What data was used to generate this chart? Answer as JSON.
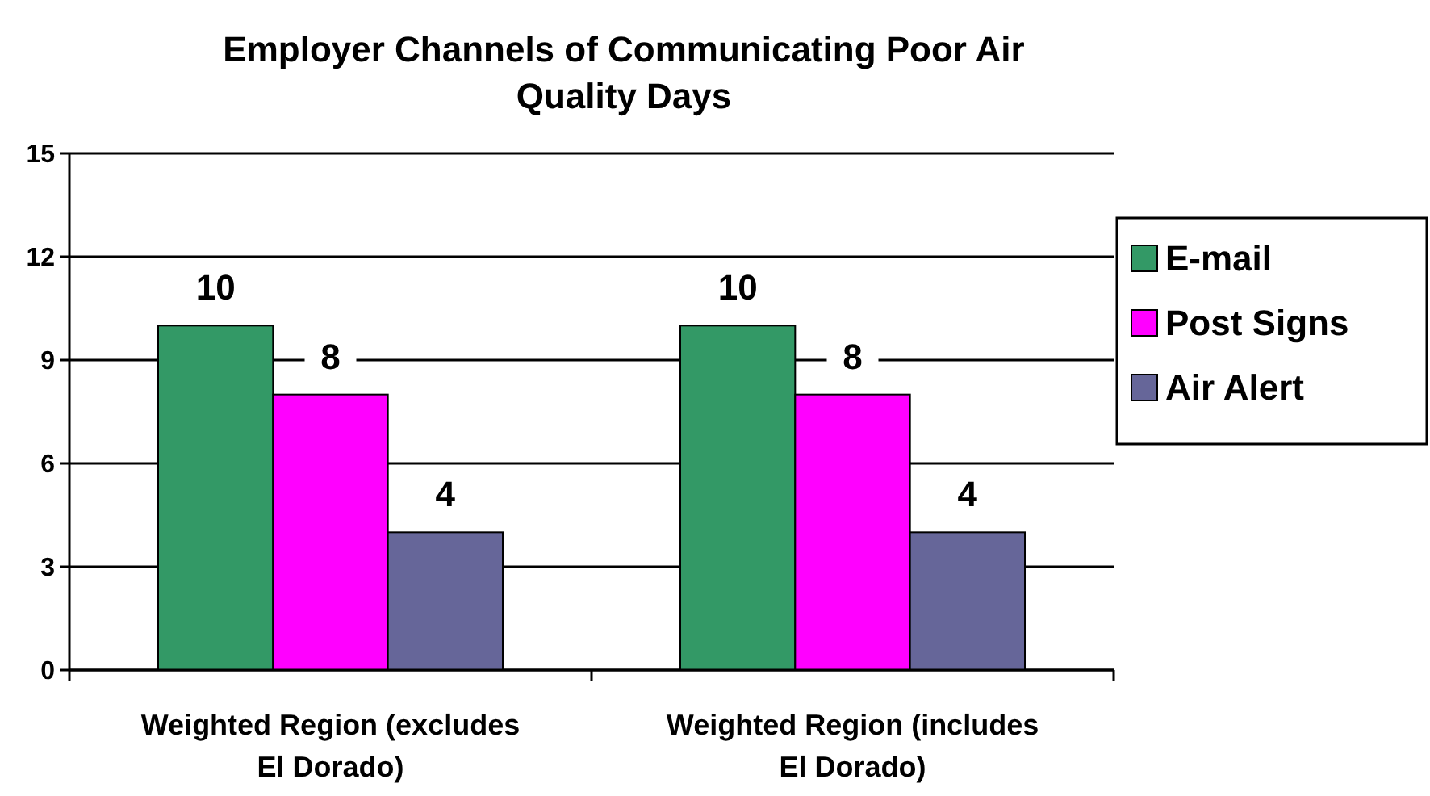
{
  "chart_data": {
    "type": "bar",
    "title": "Employer Channels of Communicating Poor Air Quality Days",
    "categories": [
      "Weighted Region (excludes El Dorado)",
      "Weighted Region (includes El Dorado)"
    ],
    "series": [
      {
        "name": "E-mail",
        "color": "#339966",
        "values": [
          10,
          10
        ]
      },
      {
        "name": "Post Signs",
        "color": "#ff00ff",
        "values": [
          8,
          8
        ]
      },
      {
        "name": "Air Alert",
        "color": "#666699",
        "values": [
          4,
          4
        ]
      }
    ],
    "ylim": [
      0,
      15
    ],
    "yticks": [
      0,
      3,
      6,
      9,
      12,
      15
    ],
    "grid": "y",
    "legend": "right",
    "data_labels": true
  }
}
